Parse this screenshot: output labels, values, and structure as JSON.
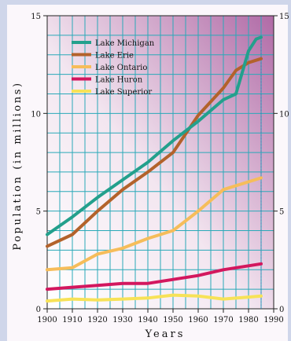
{
  "chart_data": {
    "type": "line",
    "xlabel": "Years",
    "ylabel": "Population (in millions)",
    "xlim": [
      1900,
      1990
    ],
    "ylim": [
      0,
      15
    ],
    "x_ticks": [
      "1900",
      "1910",
      "1920",
      "1930",
      "1940",
      "1950",
      "1960",
      "1970",
      "1980",
      "1990"
    ],
    "y_ticks": [
      "0",
      "5",
      "10",
      "15"
    ],
    "grid": true,
    "legend_position": "top-left",
    "series": [
      {
        "name": "Lake Michigan",
        "color": "#23a08c",
        "x": [
          1900,
          1910,
          1920,
          1930,
          1940,
          1950,
          1960,
          1970,
          1975,
          1980,
          1983,
          1985
        ],
        "y": [
          3.8,
          4.7,
          5.7,
          6.6,
          7.5,
          8.6,
          9.6,
          10.7,
          11.0,
          13.2,
          13.8,
          13.9
        ]
      },
      {
        "name": "Lake Erie",
        "color": "#b3622b",
        "x": [
          1900,
          1910,
          1920,
          1930,
          1940,
          1950,
          1960,
          1970,
          1975,
          1980,
          1985
        ],
        "y": [
          3.2,
          3.8,
          5.0,
          6.1,
          7.0,
          8.0,
          9.9,
          11.3,
          12.2,
          12.6,
          12.8
        ]
      },
      {
        "name": "Lake Ontario",
        "color": "#f6bd5a",
        "x": [
          1900,
          1910,
          1920,
          1930,
          1940,
          1950,
          1960,
          1970,
          1980,
          1985
        ],
        "y": [
          2.0,
          2.1,
          2.8,
          3.1,
          3.6,
          4.0,
          5.0,
          6.1,
          6.5,
          6.7
        ]
      },
      {
        "name": "Lake Huron",
        "color": "#d3175e",
        "x": [
          1900,
          1910,
          1920,
          1930,
          1940,
          1950,
          1960,
          1970,
          1980,
          1985
        ],
        "y": [
          1.0,
          1.1,
          1.2,
          1.3,
          1.3,
          1.5,
          1.7,
          2.0,
          2.2,
          2.3
        ]
      },
      {
        "name": "Lake Superior",
        "color": "#f7e257",
        "x": [
          1900,
          1910,
          1920,
          1930,
          1940,
          1950,
          1960,
          1970,
          1980,
          1985
        ],
        "y": [
          0.4,
          0.5,
          0.45,
          0.5,
          0.55,
          0.7,
          0.65,
          0.5,
          0.6,
          0.65
        ]
      }
    ]
  }
}
